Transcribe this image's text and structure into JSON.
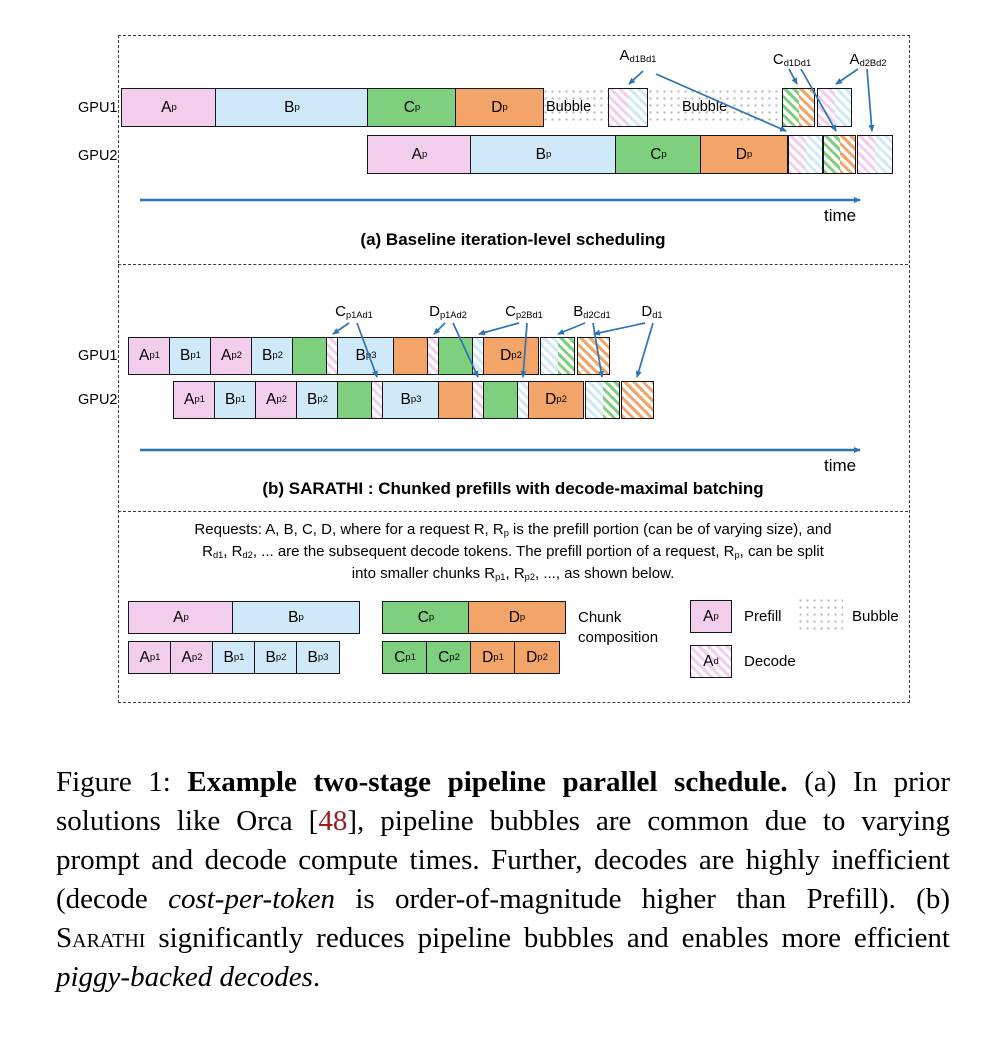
{
  "colors": {
    "prefill_pink": "#f3cdec",
    "prefill_blue": "#cfe9f9",
    "prefill_green": "#7ed07e",
    "prefill_orange": "#f2a469",
    "arrow_blue": "#2e74b5",
    "citation_red": "#9b1c1c",
    "block_border": "#15151c"
  },
  "panel_a": {
    "gpu1_label": "GPU1",
    "gpu2_label": "GPU2",
    "decode_labels": [
      "A_d1B_d1",
      "C_d1D_d1",
      "A_d2B_d2"
    ],
    "gpu1_blocks": [
      "A_p",
      "B_p",
      "C_p",
      "D_p"
    ],
    "gpu2_blocks": [
      "A_p",
      "B_p",
      "C_p",
      "D_p"
    ],
    "bubble_label_1": "Bubble",
    "bubble_label_2": "Bubble",
    "time_label": "time",
    "caption": "(a) Baseline iteration-level scheduling"
  },
  "panel_b": {
    "gpu1_label": "GPU1",
    "gpu2_label": "GPU2",
    "batch_labels": [
      "C_p1A_d1",
      "D_p1A_d2",
      "C_p2B_d1",
      "B_d2C_d1",
      "D_d1"
    ],
    "gpu1_blocks": [
      "A_p1",
      "B_p1",
      "A_p2",
      "B_p2",
      "B_p3",
      "D_p2"
    ],
    "gpu2_blocks": [
      "A_p1",
      "B_p1",
      "A_p2",
      "B_p2",
      "B_p3",
      "D_p2"
    ],
    "time_label": "time",
    "caption": "(b) SARATHI : Chunked prefills with decode-maximal batching"
  },
  "legend": {
    "line1": "Requests: A, B, C, D, where for a request R, R_p is the prefill portion (can be of varying size), and",
    "line2": "R_d1, R_d2, ... are the subsequent decode tokens. The prefill portion of a request, R_p, can be split",
    "line3": "into smaller chunks R_p1, R_p2, ..., as shown below.",
    "chunk_row1": [
      "A_p",
      "B_p",
      "C_p",
      "D_p"
    ],
    "chunk_row2": [
      "A_p1",
      "A_p2",
      "B_p1",
      "B_p2",
      "B_p3",
      "C_p1",
      "C_p2",
      "D_p1",
      "D_p2"
    ],
    "chunk_caption": "Chunk composition",
    "prefill_sample": "A_p",
    "prefill_text": "Prefill",
    "bubble_text": "Bubble",
    "decode_sample": "A_d",
    "decode_text": "Decode"
  },
  "caption": {
    "segments": {
      "s1": "Figure 1: ",
      "s2": "Example two-stage pipeline parallel schedule.",
      "s3": " (a) In prior solutions like Orca [",
      "s4": "48",
      "s5": "], pipeline bubbles are common due to varying prompt and decode compute times. Further, decodes are highly inefficient (decode ",
      "s6": "cost-per-token",
      "s7": " is order-of-magnitude higher than Prefill). (b) ",
      "s8": "Sarathi",
      "s9": " significantly reduces pipeline bubbles and enables more efficient ",
      "s10": "piggy-backed decodes",
      "s11": "."
    }
  }
}
